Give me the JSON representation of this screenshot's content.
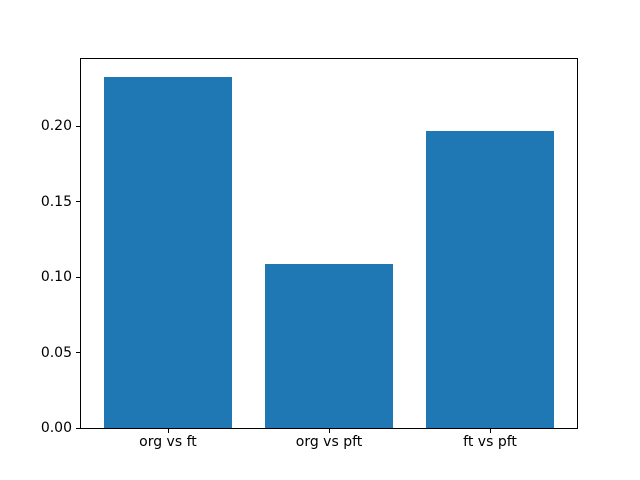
{
  "chart_data": {
    "type": "bar",
    "title": "",
    "xlabel": "",
    "ylabel": "",
    "categories": [
      "org vs ft",
      "org vs pft",
      "ft vs pft"
    ],
    "values": [
      0.233,
      0.109,
      0.197
    ],
    "ylim": [
      0,
      0.2447
    ],
    "yticks": [
      0.0,
      0.05,
      0.1,
      0.15,
      0.2
    ],
    "ytick_labels": [
      "0.00",
      "0.05",
      "0.10",
      "0.15",
      "0.20"
    ],
    "bar_color": "#1f77b4",
    "bar_width_fraction": 0.8,
    "grid": false,
    "legend_position": "none",
    "frame_color": "#000000",
    "background_color": "#ffffff",
    "tick_label_color": "#000000"
  }
}
